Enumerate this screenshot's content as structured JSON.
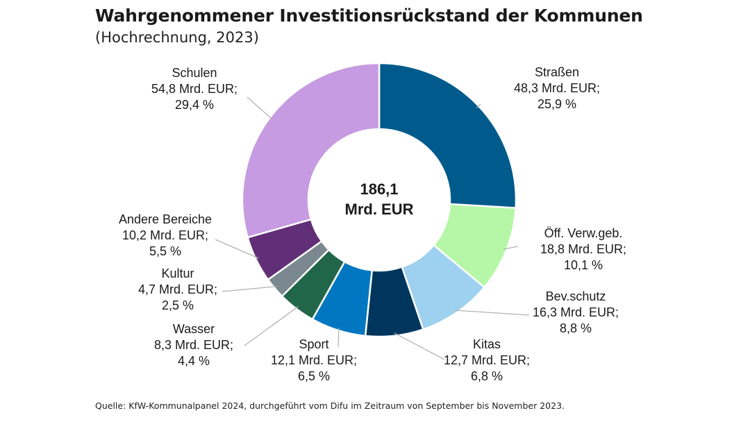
{
  "chart_data": {
    "type": "pie",
    "variant": "donut",
    "title": "Wahrgenommener Investitionsrückstand der Kommunen",
    "subtitle": "(Hochrechnung, 2023)",
    "center_label": [
      "186,1",
      "Mrd. EUR"
    ],
    "total": 186.1,
    "unit": "Mrd. EUR",
    "source": "Quelle: KfW-Kommunalpanel 2024, durchgeführt vom Difu im Zeitraum von September bis November 2023.",
    "slices": [
      {
        "name": "Straßen",
        "value": 48.3,
        "percent": 25.9,
        "label_lines": [
          "Straßen",
          "48,3 Mrd. EUR;",
          "25,9 %"
        ],
        "color": "#005a8c"
      },
      {
        "name": "Öff. Verw.geb.",
        "value": 18.8,
        "percent": 10.1,
        "label_lines": [
          "Öff. Verw.geb.",
          "18,8 Mrd. EUR;",
          "10,1 %"
        ],
        "color": "#b6f7a7"
      },
      {
        "name": "Bev.schutz",
        "value": 16.3,
        "percent": 8.8,
        "label_lines": [
          "Bev.schutz",
          "16,3 Mrd. EUR;",
          "8,8 %"
        ],
        "color": "#9dd1ef"
      },
      {
        "name": "Kitas",
        "value": 12.7,
        "percent": 6.8,
        "label_lines": [
          "Kitas",
          "12,7 Mrd. EUR;",
          "6,8 %"
        ],
        "color": "#00365e"
      },
      {
        "name": "Sport",
        "value": 12.1,
        "percent": 6.5,
        "label_lines": [
          "Sport",
          "12,1 Mrd. EUR;",
          "6,5 %"
        ],
        "color": "#0077c0"
      },
      {
        "name": "Wasser",
        "value": 8.3,
        "percent": 4.4,
        "label_lines": [
          "Wasser",
          "8,3 Mrd. EUR;",
          "4,4 %"
        ],
        "color": "#22664a"
      },
      {
        "name": "Kultur",
        "value": 4.7,
        "percent": 2.5,
        "label_lines": [
          "Kultur",
          "4,7 Mrd. EUR;",
          "2,5 %"
        ],
        "color": "#7b8890"
      },
      {
        "name": "Andere Bereiche",
        "value": 10.2,
        "percent": 5.5,
        "label_lines": [
          "Andere Bereiche",
          "10,2 Mrd. EUR;",
          "5,5 %"
        ],
        "color": "#612f77"
      },
      {
        "name": "Schulen",
        "value": 54.8,
        "percent": 29.4,
        "label_lines": [
          "Schulen",
          "54,8 Mrd. EUR;",
          "29,4 %"
        ],
        "color": "#c69be1"
      }
    ]
  }
}
